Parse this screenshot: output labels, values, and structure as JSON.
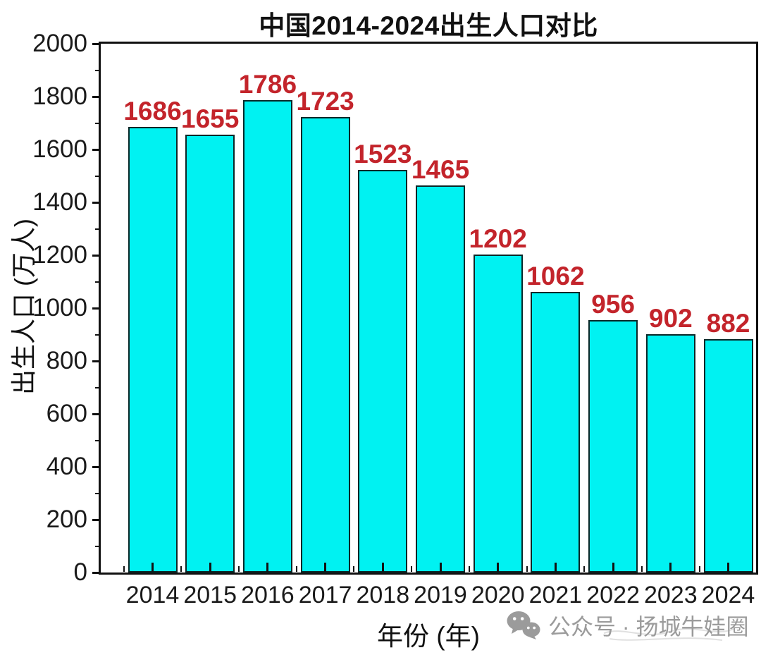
{
  "chart_data": {
    "type": "bar",
    "title": "中国2014-2024出生人口对比",
    "xlabel": "年份 (年)",
    "ylabel": "出生人口 (万人)",
    "categories": [
      "2014",
      "2015",
      "2016",
      "2017",
      "2018",
      "2019",
      "2020",
      "2021",
      "2022",
      "2023",
      "2024"
    ],
    "values": [
      1686,
      1655,
      1786,
      1723,
      1523,
      1465,
      1202,
      1062,
      956,
      902,
      882
    ],
    "ylim": [
      0,
      2000
    ],
    "ytick_major_step": 200,
    "ytick_minor_step": 100,
    "ytick_labels": [
      "0",
      "200",
      "400",
      "600",
      "800",
      "1000",
      "1200",
      "1400",
      "1600",
      "1800",
      "2000"
    ],
    "grid": false,
    "legend": null,
    "colors": {
      "bar_fill": "#00F2F2",
      "bar_border": "#0b2828",
      "value_label": "#C3242B",
      "axis": "#111111",
      "text": "#1a1a1a"
    }
  },
  "watermark": {
    "icon": "wechat-icon",
    "text": "公众号 · 扬城牛娃圈",
    "color": "#9b9b9b"
  }
}
